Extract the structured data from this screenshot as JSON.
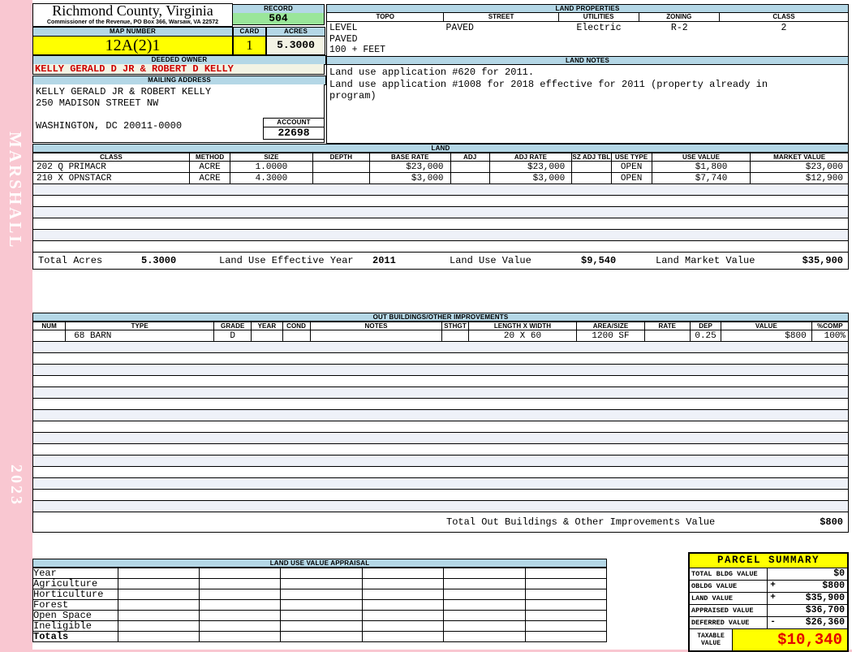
{
  "colors": {
    "page_pink": "#f9c7d1",
    "header_blue": "#b4d7e6",
    "record_green": "#9ae69a",
    "highlight_yellow": "#ffff00",
    "owner_red": "#cc0000",
    "taxable_red": "#e30000",
    "ivory": "#f3f3e4"
  },
  "sidebar": {
    "name": "MARSHALL",
    "year": "2023"
  },
  "county": {
    "title": "Richmond County, Virginia",
    "subtitle": "Commissioner of the Revenue, PO Box 366, Warsaw, VA 22572"
  },
  "record": {
    "label": "RECORD",
    "value": "504"
  },
  "map": {
    "label": "MAP NUMBER",
    "value": "12A(2)1"
  },
  "card": {
    "label": "CARD",
    "value": "1"
  },
  "acres": {
    "label": "ACRES",
    "value": "5.3000"
  },
  "deeded_owner": {
    "label": "DEEDED OWNER",
    "value": "KELLY GERALD D JR & ROBERT D KELLY"
  },
  "mailing": {
    "label": "MAILING ADDRESS",
    "lines": [
      "KELLY GERALD JR & ROBERT KELLY",
      "250 MADISON STREET NW",
      "",
      "WASHINGTON, DC 20011-0000"
    ]
  },
  "account": {
    "label": "ACCOUNT",
    "value": "22698"
  },
  "land_properties": {
    "title": "LAND PROPERTIES",
    "columns": [
      "TOPO",
      "STREET",
      "UTILITIES",
      "ZONING",
      "CLASS"
    ],
    "topo_lines": [
      "LEVEL",
      "PAVED",
      "100 + FEET"
    ],
    "street": "PAVED",
    "utilities": "Electric",
    "zoning": "R-2",
    "class": "2"
  },
  "land_notes": {
    "title": "LAND NOTES",
    "lines": [
      "Land use application #620 for 2011.",
      "Land use application #1008 for 2018 effective for 2011 (property already in",
      "program)"
    ]
  },
  "land": {
    "title": "LAND",
    "columns": [
      "CLASS",
      "METHOD",
      "SIZE",
      "DEPTH",
      "BASE RATE",
      "ADJ",
      "ADJ RATE",
      "SZ ADJ TBL",
      "USE TYPE",
      "USE VALUE",
      "MARKET VALUE"
    ],
    "rows": [
      {
        "cells": [
          "202 Q PRIMACR",
          "ACRE",
          "1.0000",
          "",
          "$23,000",
          "",
          "$23,000",
          "",
          "OPEN",
          "$1,800",
          "$23,000"
        ]
      },
      {
        "cells": [
          "210 X OPNSTACR",
          "ACRE",
          "4.3000",
          "",
          "$3,000",
          "",
          "$3,000",
          "",
          "OPEN",
          "$7,740",
          "$12,900"
        ]
      }
    ],
    "empty_rows": 6,
    "totals": {
      "total_acres_label": "Total Acres",
      "total_acres": "5.3000",
      "effective_year_label": "Land Use Effective Year",
      "effective_year": "2011",
      "use_value_label": "Land Use Value",
      "use_value": "$9,540",
      "market_value_label": "Land Market Value",
      "market_value": "$35,900"
    }
  },
  "out_buildings": {
    "title": "OUT BUILDINGS/OTHER IMPROVEMENTS",
    "columns": [
      "NUM",
      "TYPE",
      "GRADE",
      "YEAR",
      "COND",
      "NOTES",
      "STHGT",
      "LENGTH X WIDTH",
      "AREA/SIZE",
      "RATE",
      "DEP",
      "VALUE",
      "%COMP"
    ],
    "rows": [
      {
        "cells": [
          "",
          "68 BARN",
          "D",
          "",
          "",
          "",
          "",
          "20 X 60",
          "1200 SF",
          "",
          "0.25",
          "$800",
          "100%"
        ]
      }
    ],
    "empty_rows": 15,
    "total_label": "Total Out Buildings & Other Improvements Value",
    "total_value": "$800"
  },
  "land_use_appraisal": {
    "title": "LAND USE VALUE APPRAISAL",
    "row_labels": [
      "Year",
      "Agriculture",
      "Horticulture",
      "Forest",
      "Open Space",
      "Ineligible",
      "Totals"
    ],
    "value_columns": 6
  },
  "parcel_summary": {
    "title": "PARCEL SUMMARY",
    "rows": [
      {
        "label": "TOTAL BLDG VALUE",
        "op": "",
        "value": "$0"
      },
      {
        "label": "OBLDG VALUE",
        "op": "+",
        "value": "$800"
      },
      {
        "label": "LAND VALUE",
        "op": "+",
        "value": "$35,900"
      },
      {
        "label": "APPRAISED VALUE",
        "op": "",
        "value": "$36,700"
      },
      {
        "label": "DEFERRED VALUE",
        "op": "-",
        "value": "$26,360"
      }
    ],
    "taxable": {
      "label_line1": "TAXABLE",
      "label_line2": "VALUE",
      "value": "$10,340"
    }
  }
}
